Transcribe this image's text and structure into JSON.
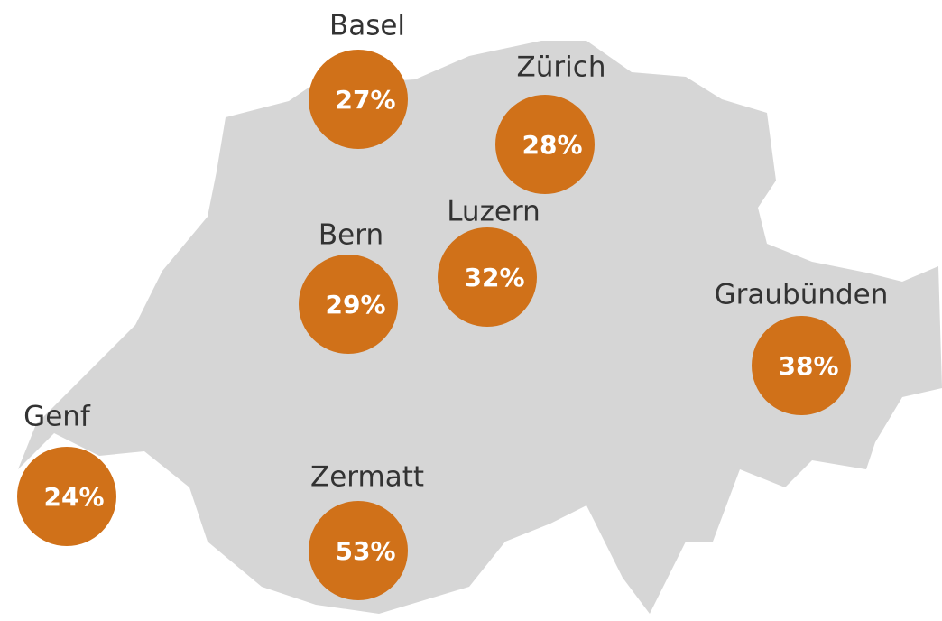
{
  "regions": [
    {
      "name": "Basel",
      "label": "27%"
    },
    {
      "name": "Zürich",
      "label": "28%"
    },
    {
      "name": "Bern",
      "label": "29%"
    },
    {
      "name": "Luzern",
      "label": "32%"
    },
    {
      "name": "Graubünden",
      "label": "38%"
    },
    {
      "name": "Genf",
      "label": "24%"
    },
    {
      "name": "Zermatt",
      "label": "53%"
    }
  ]
}
